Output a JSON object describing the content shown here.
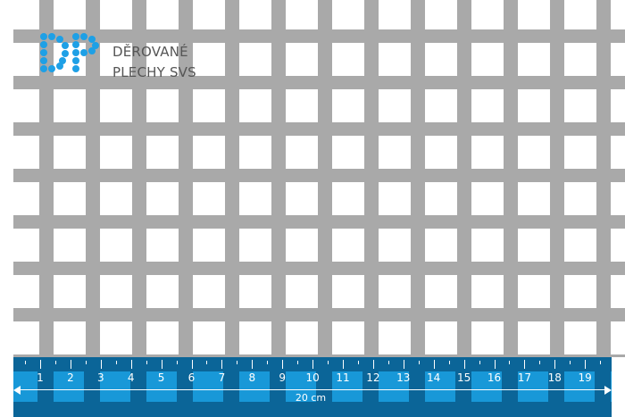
{
  "logo": {
    "text_line1": "DĚROVANÉ",
    "text_line2": "PLECHY SVS",
    "monogram": "DP",
    "color": "#1ea0e6"
  },
  "sheet": {
    "metal_color": "#a9a9a9",
    "hole_shape": "square"
  },
  "ruler": {
    "labels": [
      "1",
      "2",
      "3",
      "4",
      "5",
      "6",
      "7",
      "8",
      "9",
      "10",
      "11",
      "12",
      "13",
      "14",
      "15",
      "16",
      "17",
      "18",
      "19"
    ],
    "total_length": "20 cm",
    "color": "#0b6598",
    "accent_color": "#1898d8"
  }
}
